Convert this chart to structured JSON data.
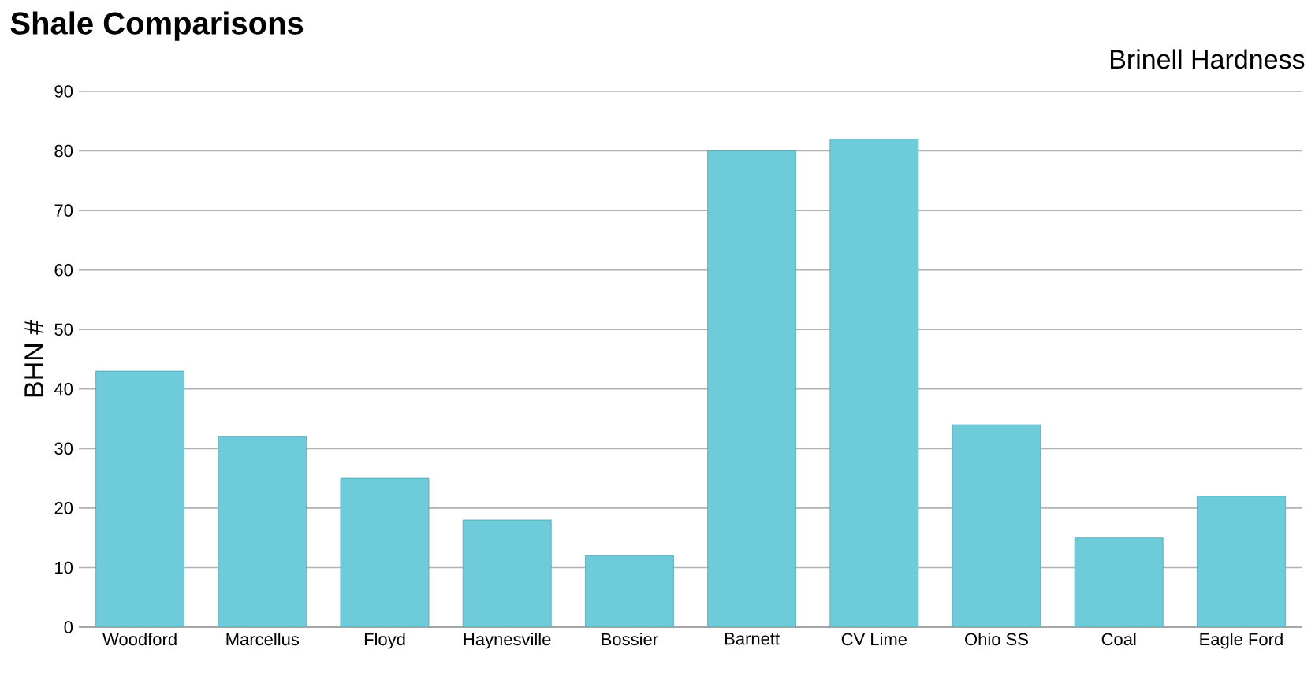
{
  "chart_data": {
    "type": "bar",
    "title": "Shale Comparisons",
    "subtitle": "Brinell Hardness",
    "ylabel": "BHN #",
    "categories": [
      "Woodford",
      "Marcellus",
      "Floyd",
      "Haynesville",
      "Bossier",
      "Barnett",
      "CV Lime",
      "Ohio SS",
      "Coal",
      "Eagle Ford"
    ],
    "values": [
      43,
      32,
      25,
      18,
      12,
      80,
      82,
      34,
      15,
      22
    ],
    "color": "#6ecbd9",
    "ylim": [
      0,
      90
    ],
    "yticks": [
      0,
      10,
      20,
      30,
      40,
      50,
      60,
      70,
      80,
      90
    ],
    "grid": "y"
  }
}
